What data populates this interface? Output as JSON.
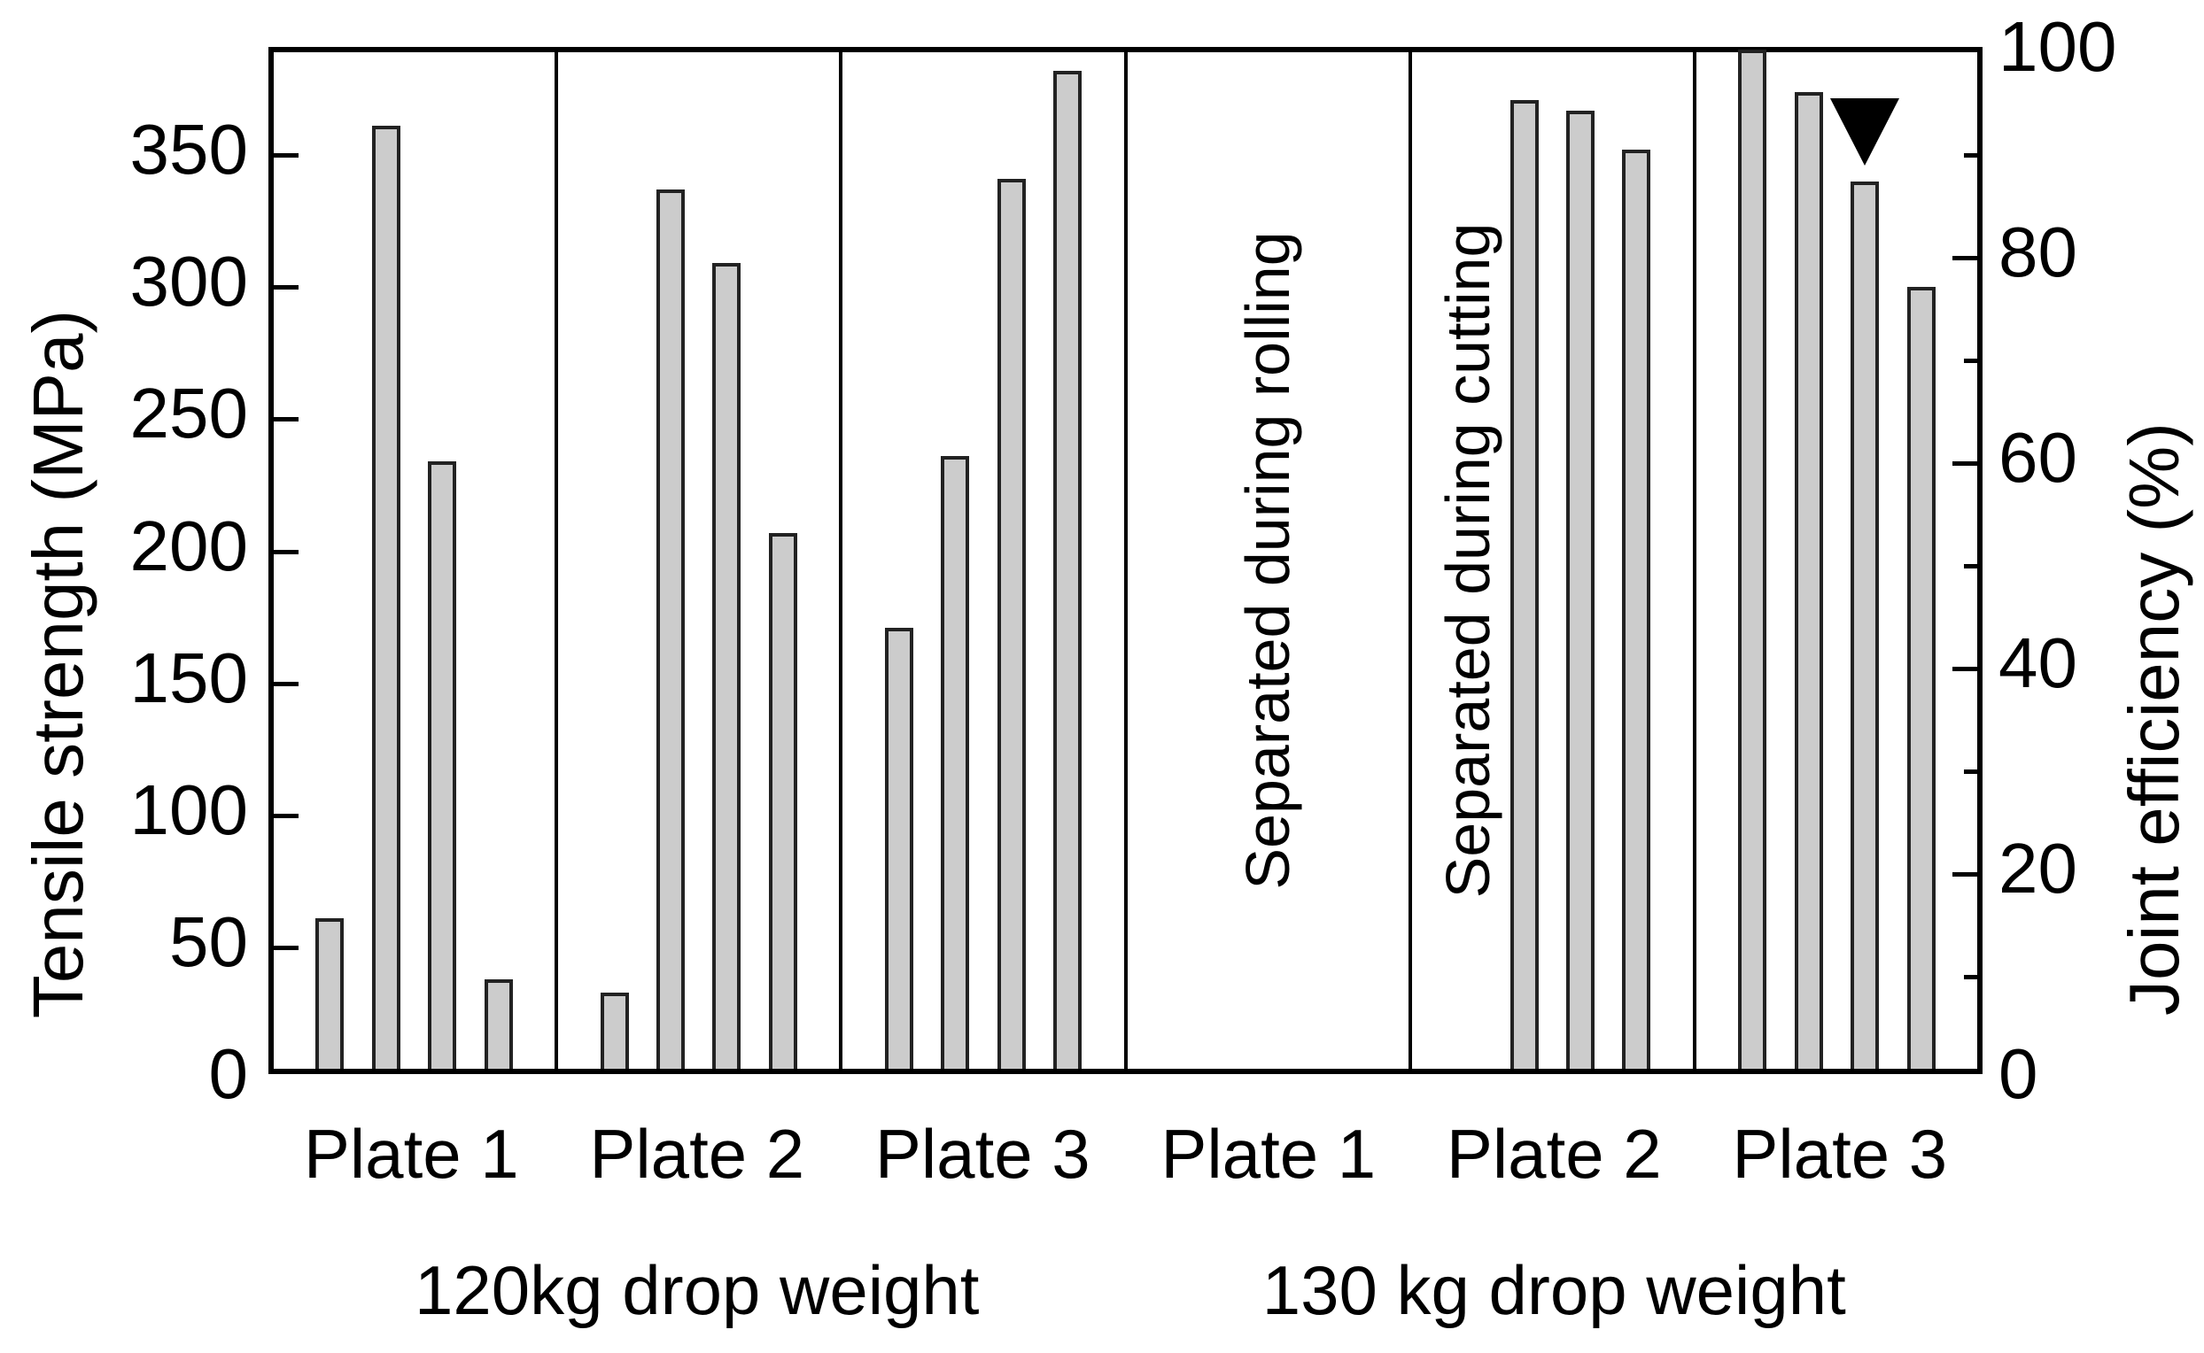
{
  "figure": {
    "background": "#ffffff",
    "bar_fill": "#cccccc",
    "bar_outline": "#222222",
    "axis_color": "#000000",
    "marker_color": "#000000"
  },
  "axes": {
    "left": {
      "label": "Tensile strength (MPa)",
      "ticks": [
        0,
        50,
        100,
        150,
        200,
        250,
        300,
        350
      ],
      "max_value_at_frame_top": 389
    },
    "right": {
      "label": "Joint efficiency (%)",
      "ticks": [
        0,
        20,
        40,
        60,
        80,
        100
      ],
      "minor_ticks": [
        10,
        30,
        50,
        70,
        90
      ],
      "max_value_at_frame_top": 100
    }
  },
  "chart_data": {
    "type": "bar",
    "title": "",
    "ylabel": "Tensile strength (MPa)",
    "y2label": "Joint efficiency (%)",
    "ylim": [
      0,
      389
    ],
    "y2lim": [
      0,
      100
    ],
    "grid": false,
    "implied_100pct_mpa": 389,
    "sections": [
      {
        "label": "120kg drop weight",
        "groups": [
          {
            "label": "Plate 1",
            "values": [
              57,
              357,
              230,
              34
            ]
          },
          {
            "label": "Plate 2",
            "values": [
              29,
              333,
              305,
              203
            ]
          },
          {
            "label": "Plate 3",
            "values": [
              167,
              232,
              337,
              378
            ]
          }
        ]
      },
      {
        "label": "130 kg drop weight",
        "groups": [
          {
            "label": "Plate 1",
            "values": [],
            "note": "Separated during rolling"
          },
          {
            "label": "Plate 2",
            "values": [
              367,
              363,
              348
            ],
            "note": "Separated during cutting"
          },
          {
            "label": "Plate 3",
            "values": [
              386,
              370,
              336,
              296
            ],
            "marker_on_index": 2,
            "marker": "filled-down-triangle"
          }
        ]
      }
    ]
  }
}
